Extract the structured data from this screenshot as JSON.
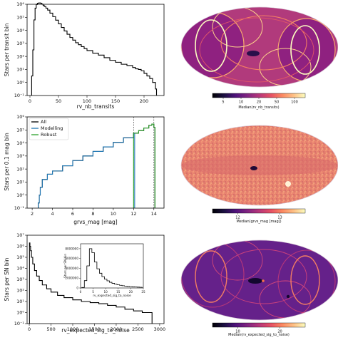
{
  "colors": {
    "hist_black": "#000000",
    "all": "#000000",
    "modelling": "#1f77b4",
    "robust": "#2ca02c",
    "magma_low": "#000004",
    "magma_high": "#fcfdbf"
  },
  "chart_data": [
    {
      "type": "histogram",
      "panel": "left-1",
      "xlabel": "rv_nb_transits",
      "ylabel": "Stars per transit bin",
      "yscale": "log",
      "xlim": [
        -5,
        235
      ],
      "ylim_exp": [
        -1,
        6
      ],
      "x_ticks": [
        "0",
        "50",
        "100",
        "150",
        "200"
      ],
      "x_tick_values": [
        0,
        50,
        100,
        150,
        200
      ],
      "y_ticks": [
        "10⁻¹",
        "10⁰",
        "10¹",
        "10²",
        "10³",
        "10⁴",
        "10⁵",
        "10⁶"
      ],
      "series": [
        {
          "x": [
            3,
            5,
            7,
            9,
            11,
            13,
            15,
            17,
            19,
            21,
            23,
            25,
            28,
            31,
            35,
            40,
            45,
            50,
            55,
            60,
            65,
            70,
            75,
            80,
            85,
            90,
            95,
            100,
            110,
            120,
            130,
            140,
            150,
            160,
            170,
            180,
            185,
            190,
            195,
            200,
            205,
            210,
            215,
            220
          ],
          "log10_y": [
            0.5,
            2.5,
            4.8,
            5.7,
            5.98,
            6.08,
            6.1,
            6.1,
            6.07,
            6.0,
            5.92,
            5.83,
            5.7,
            5.55,
            5.32,
            5.05,
            4.78,
            4.5,
            4.22,
            3.95,
            3.7,
            3.45,
            3.25,
            3.05,
            2.9,
            2.75,
            2.6,
            2.45,
            2.25,
            2.1,
            1.9,
            1.7,
            1.55,
            1.4,
            1.3,
            1.15,
            1.05,
            1.0,
            0.9,
            0.7,
            0.5,
            0.3,
            0.0,
            -0.5
          ]
        }
      ]
    },
    {
      "type": "histogram",
      "panel": "left-2",
      "xlabel": "grvs_mag [mag]",
      "ylabel": "Stars per 0.1 mag bin",
      "yscale": "log",
      "xlim": [
        1.5,
        15.0
      ],
      "ylim_exp": [
        -1,
        6
      ],
      "x_ticks": [
        "2",
        "4",
        "6",
        "8",
        "10",
        "12",
        "14"
      ],
      "x_tick_values": [
        2,
        4,
        6,
        8,
        10,
        12,
        14
      ],
      "y_ticks": [
        "10⁻¹",
        "10⁰",
        "10¹",
        "10²",
        "10³",
        "10⁴",
        "10⁵",
        "10⁶"
      ],
      "vlines": [
        12.0,
        14.0
      ],
      "legend_position": "upper-left",
      "series": [
        {
          "name": "All",
          "x": [
            2.6,
            2.7,
            2.8,
            3.0,
            3.5,
            4.0,
            5.0,
            6.0,
            7.0,
            8.0,
            9.0,
            10.0,
            11.0,
            12.0,
            12.5,
            13.0,
            13.5,
            13.8,
            14.0
          ],
          "log10_y": [
            -0.6,
            0.0,
            0.6,
            1.2,
            1.6,
            1.85,
            2.25,
            2.65,
            3.0,
            3.35,
            3.7,
            4.05,
            4.4,
            4.75,
            4.95,
            5.15,
            5.35,
            5.45,
            5.2
          ]
        },
        {
          "name": "Modelling",
          "x": [
            2.6,
            2.7,
            2.8,
            3.0,
            3.5,
            4.0,
            5.0,
            6.0,
            7.0,
            8.0,
            9.0,
            10.0,
            11.0,
            12.0
          ],
          "log10_y": [
            -0.6,
            0.0,
            0.6,
            1.2,
            1.6,
            1.85,
            2.25,
            2.65,
            3.0,
            3.35,
            3.7,
            4.05,
            4.4,
            4.75
          ]
        },
        {
          "name": "Robust",
          "x": [
            12.0,
            12.5,
            13.0,
            13.5,
            13.8,
            14.0
          ],
          "log10_y": [
            4.75,
            4.95,
            5.15,
            5.35,
            5.45,
            5.2
          ]
        }
      ]
    },
    {
      "type": "histogram",
      "panel": "left-3",
      "xlabel": "rv_expected_sig_to_noise",
      "ylabel": "Stars per SN bin",
      "yscale": "log",
      "xlim": [
        -50,
        3100
      ],
      "ylim_exp": [
        -1,
        7
      ],
      "x_ticks": [
        "0",
        "500",
        "1000",
        "1500",
        "2000",
        "2500",
        "3000"
      ],
      "x_tick_values": [
        0,
        500,
        1000,
        1500,
        2000,
        2500,
        3000
      ],
      "y_ticks": [
        "10⁻¹",
        "10⁰",
        "10¹",
        "10²",
        "10³",
        "10⁴",
        "10⁵",
        "10⁶",
        "10⁷"
      ],
      "series": [
        {
          "x": [
            5,
            15,
            30,
            50,
            80,
            120,
            170,
            230,
            300,
            400,
            500,
            650,
            800,
            1000,
            1200,
            1400,
            1600,
            1800,
            2000,
            2200,
            2400,
            2600,
            2800
          ],
          "log10_y": [
            6.3,
            6.0,
            5.6,
            5.0,
            4.4,
            3.8,
            3.3,
            2.9,
            2.5,
            2.15,
            1.85,
            1.55,
            1.35,
            1.15,
            1.0,
            0.9,
            0.8,
            0.65,
            0.5,
            0.3,
            0.15,
            0.0,
            0.0
          ]
        }
      ],
      "inset": {
        "type": "histogram",
        "xlabel": "rv_expected_sig_to_noise",
        "ylabel": "Stars per SN bin",
        "xlim": [
          0,
          25
        ],
        "ylim": [
          0,
          9000000
        ],
        "x_ticks": [
          "0",
          "5",
          "10",
          "15",
          "20",
          "25"
        ],
        "x_tick_values": [
          0,
          5,
          10,
          15,
          20,
          25
        ],
        "y_ticks": [
          "0",
          "2000000",
          "4000000",
          "6000000",
          "8000000"
        ],
        "y_tick_values": [
          0,
          2000000,
          4000000,
          6000000,
          8000000
        ],
        "x": [
          1,
          2,
          3,
          4,
          5,
          6,
          7,
          8,
          9,
          10,
          11,
          12,
          13,
          14,
          15,
          16,
          17,
          18,
          19,
          20,
          21,
          22,
          23,
          24
        ],
        "y": [
          100000,
          1500000,
          4500000,
          8000000,
          7200000,
          5300000,
          3900000,
          3000000,
          2300000,
          1800000,
          1450000,
          1150000,
          950000,
          780000,
          650000,
          540000,
          450000,
          380000,
          320000,
          270000,
          230000,
          200000,
          170000,
          150000
        ]
      }
    },
    {
      "type": "heatmap",
      "panel": "right-1",
      "projection": "Mollweide sky map",
      "colormap": "magma",
      "colorbar_label": "Median(rv_nb_transits)",
      "colorbar_ticks": [
        "5",
        "10",
        "20",
        "50",
        "100"
      ]
    },
    {
      "type": "heatmap",
      "panel": "right-2",
      "projection": "Mollweide sky map",
      "colormap": "magma",
      "colorbar_label": "Median(grvs_mag [mag])",
      "colorbar_ticks": [
        "12",
        "13"
      ]
    },
    {
      "type": "heatmap",
      "panel": "right-3",
      "projection": "Mollweide sky map",
      "colormap": "magma",
      "colorbar_label": "Median(rv_expected_sig_to_noise)",
      "colorbar_ticks": [
        "10",
        "20"
      ]
    }
  ]
}
